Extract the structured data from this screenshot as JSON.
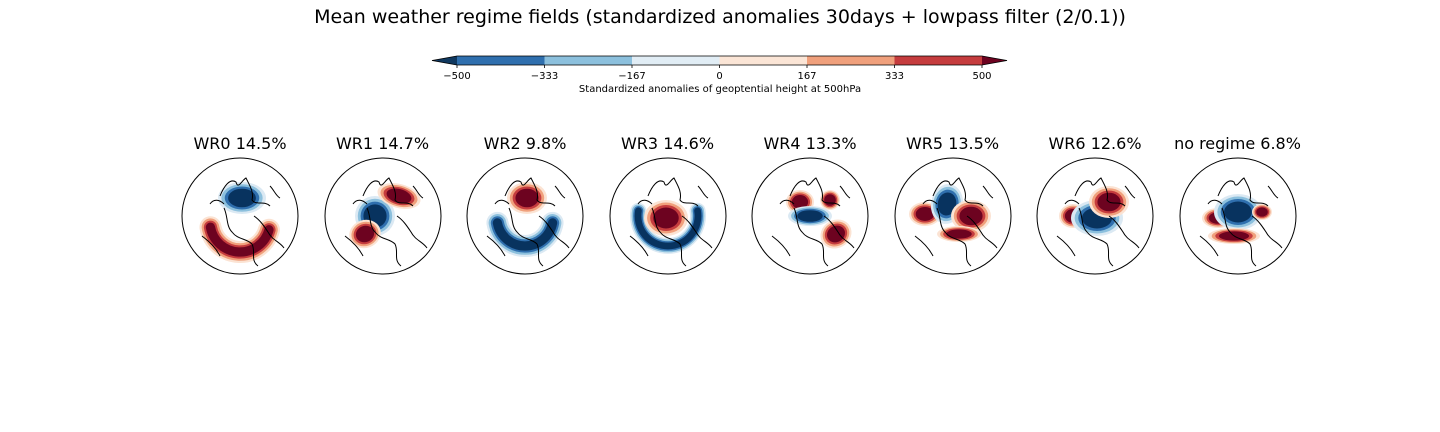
{
  "title": "Mean weather regime fields (standardized anomalies 30days + lowpass filter (2/0.1))",
  "colorbar": {
    "label": "Standardized anomalies of geoptential height at 500hPa",
    "ticks": [
      "−500",
      "−333",
      "−167",
      "0",
      "167",
      "333",
      "500"
    ],
    "levels": [
      -500,
      -333,
      -167,
      0,
      167,
      333,
      500
    ],
    "colors": [
      "#2f6fae",
      "#8cc0dd",
      "#e1edf5",
      "#fbe5d6",
      "#f0a07c",
      "#c53c3e"
    ],
    "under_color": "#10385f",
    "over_color": "#6d0320",
    "extend": "both"
  },
  "chart_data": {
    "type": "heatmap",
    "projection": "north-polar-orthographic",
    "panels": [
      {
        "label": "WR0 14.5%",
        "regime": "WR0",
        "frequency_pct": 14.5,
        "anomalies": [
          {
            "sign": "negative",
            "location": "Arctic / Greenland"
          },
          {
            "sign": "positive",
            "location": "mid-latitude Atlantic-Europe belt"
          }
        ]
      },
      {
        "label": "WR1 14.7%",
        "regime": "WR1",
        "frequency_pct": 14.7,
        "anomalies": [
          {
            "sign": "negative",
            "location": "central Arctic"
          },
          {
            "sign": "positive",
            "location": "North Atlantic"
          },
          {
            "sign": "positive",
            "location": "Greenland / northern Europe"
          }
        ]
      },
      {
        "label": "WR2 9.8%",
        "regime": "WR2",
        "frequency_pct": 9.8,
        "anomalies": [
          {
            "sign": "positive",
            "location": "Greenland / Arctic"
          },
          {
            "sign": "negative",
            "location": "mid-latitude Atlantic belt"
          }
        ]
      },
      {
        "label": "WR3 14.6%",
        "regime": "WR3",
        "frequency_pct": 14.6,
        "anomalies": [
          {
            "sign": "positive",
            "location": "North Atlantic"
          },
          {
            "sign": "negative",
            "location": "surrounding ring"
          }
        ]
      },
      {
        "label": "WR4 13.3%",
        "regime": "WR4",
        "frequency_pct": 13.3,
        "anomalies": [
          {
            "sign": "positive",
            "location": "Arctic"
          },
          {
            "sign": "negative",
            "location": "mid-Atlantic"
          },
          {
            "sign": "positive",
            "location": "Europe"
          }
        ]
      },
      {
        "label": "WR5 13.5%",
        "regime": "WR5",
        "frequency_pct": 13.5,
        "anomalies": [
          {
            "sign": "negative",
            "location": "Greenland"
          },
          {
            "sign": "positive",
            "location": "Atlantic"
          },
          {
            "sign": "positive",
            "location": "Scandinavia"
          }
        ]
      },
      {
        "label": "WR6 12.6%",
        "regime": "WR6",
        "frequency_pct": 12.6,
        "anomalies": [
          {
            "sign": "positive",
            "location": "Scandinavia"
          },
          {
            "sign": "negative",
            "location": "Atlantic"
          }
        ]
      },
      {
        "label": "no regime 6.8%",
        "regime": "no regime",
        "frequency_pct": 6.8,
        "anomalies": [
          {
            "sign": "negative",
            "location": "weak, North Atlantic"
          },
          {
            "sign": "positive",
            "location": "weak, Europe"
          }
        ]
      }
    ]
  }
}
